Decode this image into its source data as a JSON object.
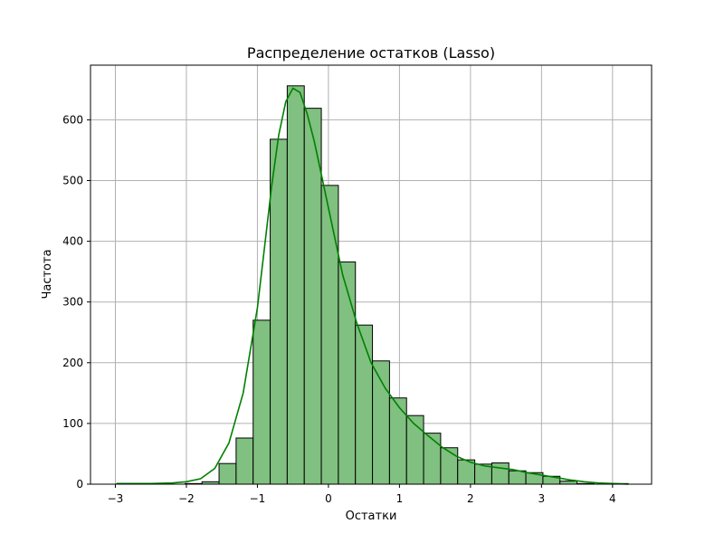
{
  "chart_data": {
    "type": "bar",
    "subtype": "histogram-with-kde",
    "title": "Распределение остатков (Lasso)",
    "xlabel": "Остатки",
    "ylabel": "Частота",
    "xlim": [
      -3.35,
      4.55
    ],
    "ylim": [
      0,
      690
    ],
    "x_ticks": [
      -3,
      -2,
      -1,
      0,
      1,
      2,
      3,
      4
    ],
    "x_tick_labels": [
      "−3",
      "−2",
      "−1",
      "0",
      "1",
      "2",
      "3",
      "4"
    ],
    "y_ticks": [
      0,
      100,
      200,
      300,
      400,
      500,
      600
    ],
    "y_tick_labels": [
      "0",
      "100",
      "200",
      "300",
      "400",
      "500",
      "600"
    ],
    "grid": true,
    "bin_edges": [
      -2.98,
      -2.74,
      -2.5,
      -2.26,
      -2.02,
      -1.78,
      -1.54,
      -1.3,
      -1.06,
      -0.82,
      -0.58,
      -0.34,
      -0.1,
      0.14,
      0.38,
      0.62,
      0.86,
      1.1,
      1.34,
      1.58,
      1.82,
      2.06,
      2.3,
      2.54,
      2.78,
      3.02,
      3.26,
      3.5,
      3.74,
      3.98,
      4.22
    ],
    "counts": [
      1,
      0,
      0,
      0,
      1,
      4,
      34,
      76,
      270,
      568,
      656,
      619,
      492,
      366,
      262,
      203,
      142,
      113,
      84,
      60,
      40,
      33,
      35,
      22,
      19,
      13,
      5,
      1,
      0,
      1
    ],
    "kde": {
      "x": [
        -2.98,
        -2.5,
        -2.2,
        -2.0,
        -1.8,
        -1.6,
        -1.4,
        -1.2,
        -1.0,
        -0.9,
        -0.8,
        -0.7,
        -0.6,
        -0.5,
        -0.4,
        -0.3,
        -0.2,
        -0.1,
        0.0,
        0.2,
        0.4,
        0.6,
        0.8,
        1.0,
        1.2,
        1.4,
        1.6,
        1.8,
        2.0,
        2.2,
        2.4,
        2.6,
        2.8,
        3.0,
        3.2,
        3.4,
        3.6,
        3.8,
        4.0,
        4.22
      ],
      "y": [
        1,
        1,
        2,
        4,
        9,
        26,
        68,
        150,
        290,
        390,
        490,
        575,
        630,
        652,
        645,
        610,
        565,
        510,
        455,
        345,
        265,
        200,
        158,
        126,
        100,
        80,
        61,
        46,
        36,
        30,
        27,
        24,
        19,
        15,
        11,
        7,
        4,
        2,
        1,
        0
      ]
    },
    "colors": {
      "bar_fill": "#80c080",
      "bar_edge": "#000000",
      "kde_line": "#008000",
      "grid": "#b0b0b0"
    }
  }
}
